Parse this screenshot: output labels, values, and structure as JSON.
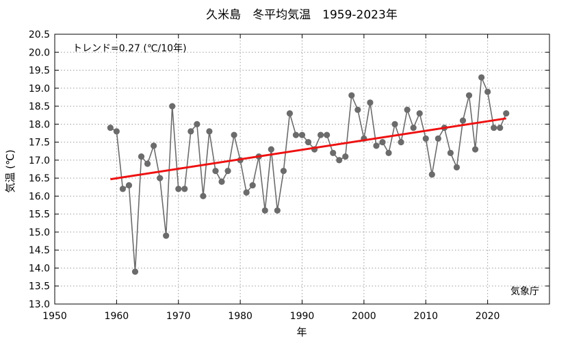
{
  "chart_data": {
    "type": "line",
    "title": "久米島　冬平均気温　1959-2023年",
    "xlabel": "年",
    "ylabel": "気温 (℃)",
    "trend_label": "トレンド=0.27 (℃/10年)",
    "source": "気象庁",
    "xlim": [
      1950,
      2030
    ],
    "ylim": [
      13.0,
      20.5
    ],
    "x_ticks": [
      "1950",
      "1960",
      "1970",
      "1980",
      "1990",
      "2000",
      "2010",
      "2020"
    ],
    "y_ticks": [
      "13.0",
      "13.5",
      "14.0",
      "14.5",
      "15.0",
      "15.5",
      "16.0",
      "16.5",
      "17.0",
      "17.5",
      "18.0",
      "18.5",
      "19.0",
      "19.5",
      "20.0",
      "20.5"
    ],
    "grid": true,
    "series": [
      {
        "type": "line",
        "color": "#6b6b6b",
        "x": [
          1959,
          1960,
          1961,
          1962,
          1963,
          1964,
          1965,
          1966,
          1967,
          1968,
          1969,
          1970,
          1971,
          1972,
          1973,
          1974,
          1975,
          1976,
          1977,
          1978,
          1979,
          1980,
          1981,
          1982,
          1983,
          1984,
          1985,
          1986,
          1987,
          1988,
          1989,
          1990,
          1991,
          1992,
          1993,
          1994,
          1995,
          1996,
          1997,
          1998,
          1999,
          2000,
          2001,
          2002,
          2003,
          2004,
          2005,
          2006,
          2007,
          2008,
          2009,
          2010,
          2011,
          2012,
          2013,
          2014,
          2015,
          2016,
          2017,
          2018,
          2019,
          2020,
          2021,
          2022,
          2023
        ],
        "y": [
          17.9,
          17.8,
          16.2,
          16.3,
          13.9,
          17.1,
          16.9,
          17.4,
          16.5,
          14.9,
          18.5,
          16.2,
          16.2,
          17.8,
          18.0,
          16.0,
          17.8,
          16.7,
          16.4,
          16.7,
          17.7,
          17.0,
          16.1,
          16.3,
          17.1,
          15.6,
          17.3,
          15.6,
          16.7,
          18.3,
          17.7,
          17.7,
          17.5,
          17.3,
          17.7,
          17.7,
          17.2,
          17.0,
          17.1,
          18.8,
          18.4,
          17.6,
          18.6,
          17.4,
          17.5,
          17.2,
          18.0,
          17.5,
          18.4,
          17.9,
          18.3,
          17.6,
          16.6,
          17.6,
          17.9,
          17.2,
          16.8,
          18.1,
          18.8,
          17.3,
          19.3,
          18.9,
          17.9,
          17.9,
          18.3
        ]
      },
      {
        "type": "trend",
        "color": "#ee1111",
        "x": [
          1959,
          2023
        ],
        "y": [
          16.47,
          18.16
        ]
      }
    ]
  }
}
